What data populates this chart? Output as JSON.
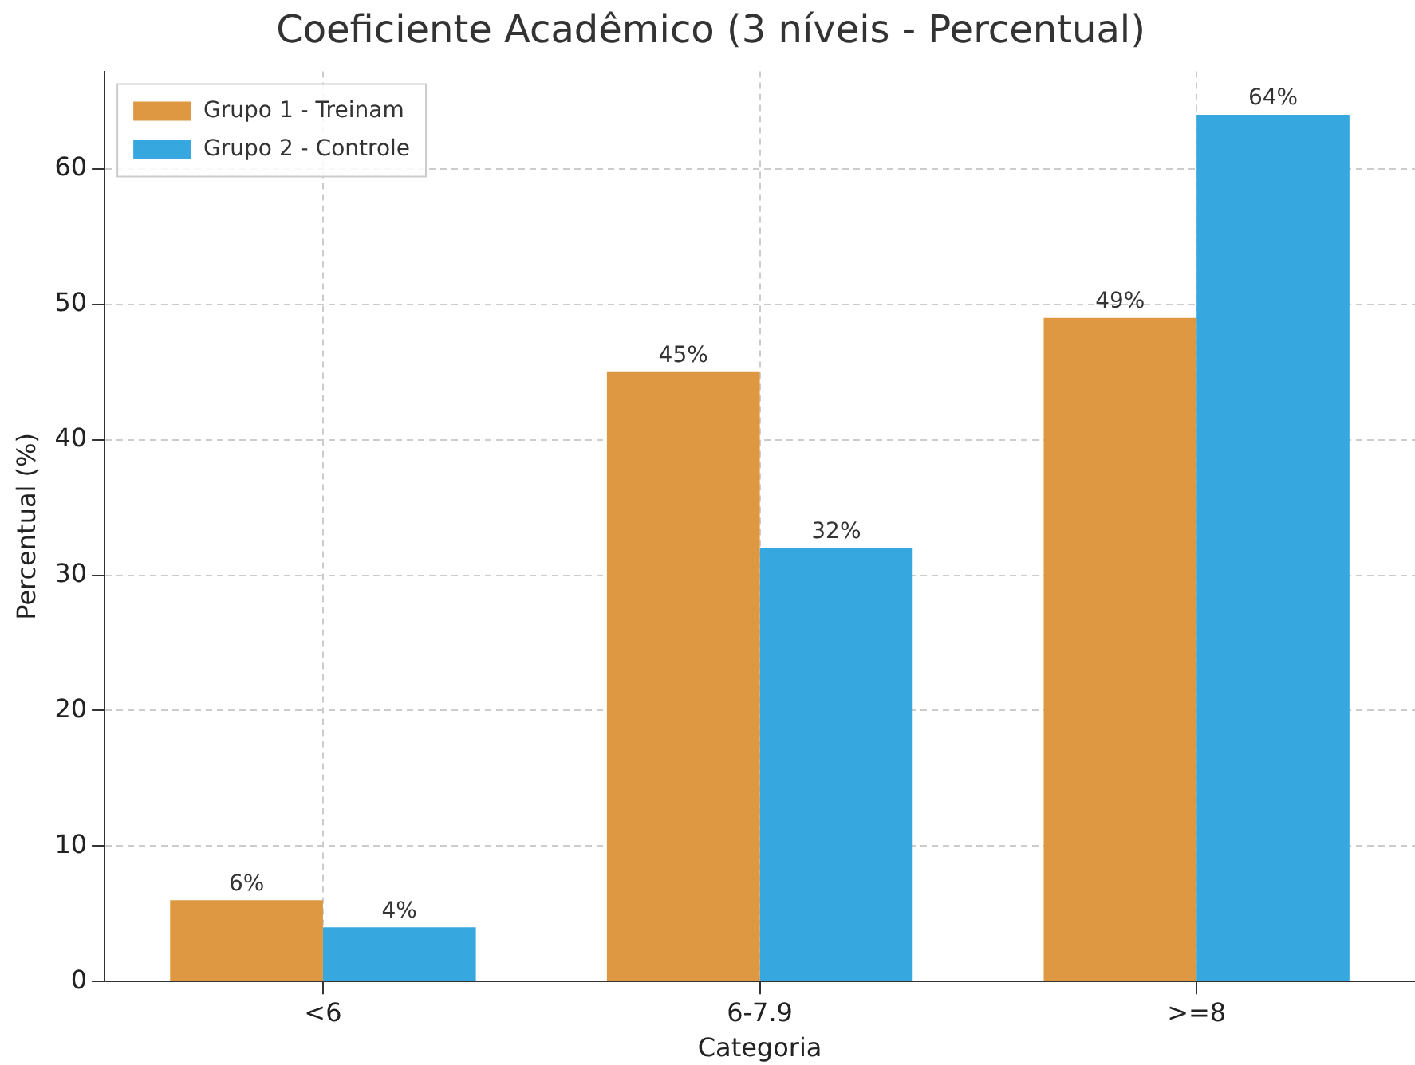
{
  "chart_data": {
    "type": "bar",
    "title": "Coeficiente Acadêmico (3 níveis - Percentual)",
    "xlabel": "Categoria",
    "ylabel": "Percentual (%)",
    "categories": [
      "<6",
      "6-7.9",
      ">=8"
    ],
    "series": [
      {
        "name": "Grupo 1 - Treinam",
        "color": "#dd9841",
        "values": [
          6,
          45,
          49
        ],
        "value_labels": [
          "6%",
          "45%",
          "49%"
        ]
      },
      {
        "name": "Grupo 2 - Controle",
        "color": "#37a8df",
        "values": [
          4,
          32,
          64
        ],
        "value_labels": [
          "4%",
          "32%",
          "64%"
        ]
      }
    ],
    "ylim": [
      0,
      67.2
    ],
    "yticks": [
      0,
      10,
      20,
      30,
      40,
      50,
      60
    ],
    "grid": true,
    "legend": "top left"
  }
}
